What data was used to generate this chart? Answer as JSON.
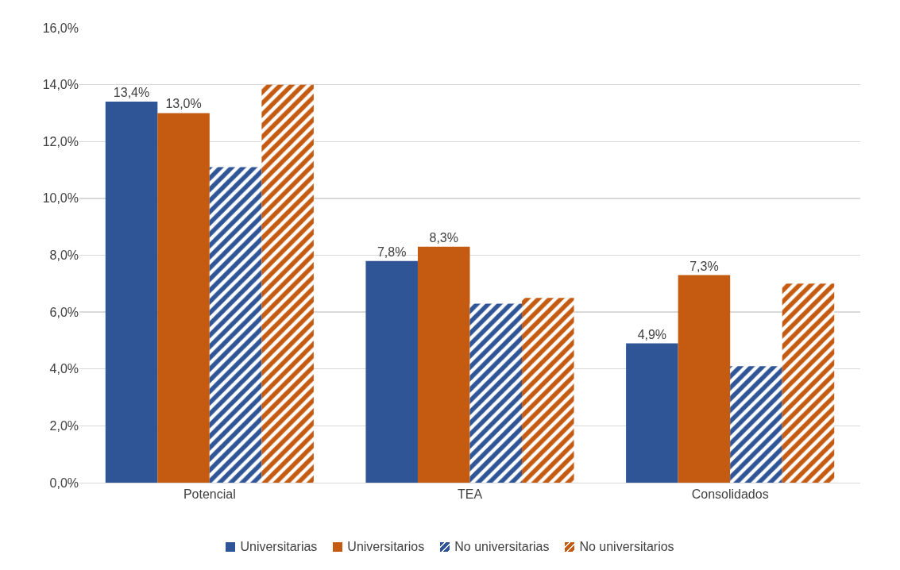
{
  "chart_data": {
    "type": "bar",
    "categories": [
      "Potencial",
      "TEA",
      "Consolidados"
    ],
    "series": [
      {
        "name": "Universitarias",
        "color": "#2f5597",
        "values": [
          13.4,
          7.8,
          4.9
        ],
        "value_labels": [
          "13,4%",
          "7,8%",
          "4,9%"
        ]
      },
      {
        "name": "Universitarios",
        "color": "#c55a11",
        "values": [
          13.0,
          8.3,
          7.3
        ],
        "value_labels": [
          "13,0%",
          "8,3%",
          "7,3%"
        ]
      },
      {
        "name": "No universitarias",
        "color": "#2f5597",
        "values": [
          11.1,
          6.3,
          4.1
        ]
      },
      {
        "name": "No universitarios",
        "color": "#c55a11",
        "values": [
          14.0,
          6.5,
          7.0
        ]
      }
    ],
    "ylim": [
      0,
      16
    ],
    "yticks": [
      {
        "value": 0,
        "label": "0,0%"
      },
      {
        "value": 2,
        "label": "2,0%"
      },
      {
        "value": 4,
        "label": "4,0%"
      },
      {
        "value": 6,
        "label": "6,0%"
      },
      {
        "value": 8,
        "label": "8,0%"
      },
      {
        "value": 10,
        "label": "10,0%"
      },
      {
        "value": 12,
        "label": "12,0%"
      },
      {
        "value": 14,
        "label": "14,0%"
      },
      {
        "value": 16,
        "label": "16,0%"
      }
    ],
    "grid": "y",
    "legend": "bottom"
  }
}
